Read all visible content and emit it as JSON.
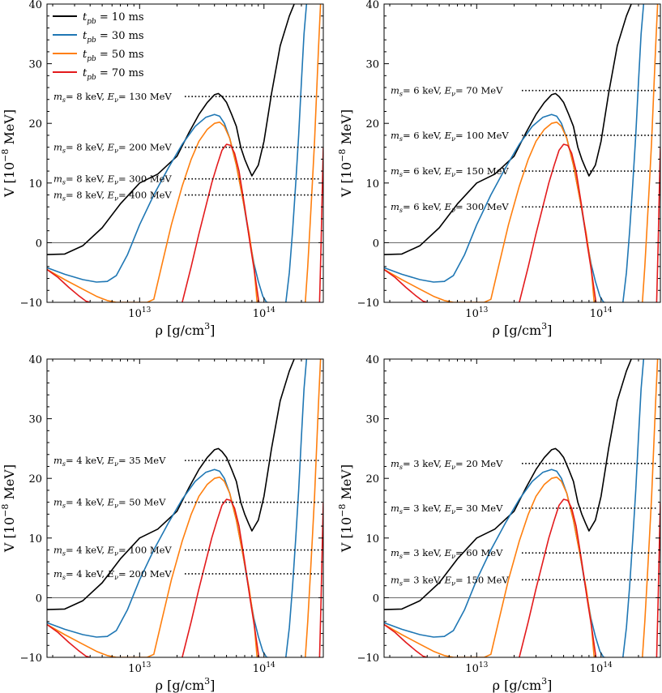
{
  "colors": {
    "t10": "#000000",
    "t30": "#1f77b4",
    "t50": "#ff7f0e",
    "t70": "#e31a1c"
  },
  "chart_data": {
    "type": "line",
    "shared": {
      "xlabel_prefix": "ρ [g/cm",
      "xlabel_sup": "3",
      "xlabel_suffix": "]",
      "ylabel_prefix": "V [10",
      "ylabel_sup": "−8",
      "ylabel_suffix": " MeV]",
      "xscale": "log",
      "xlim": [
        1800000000000.0,
        300000000000000.0
      ],
      "ylim": [
        -10,
        40
      ],
      "yticks": [
        -10,
        0,
        10,
        20,
        30,
        40
      ],
      "xticks": [
        {
          "value": 10000000000000.0,
          "base": "10",
          "exp": "13"
        },
        {
          "value": 100000000000000.0,
          "base": "10",
          "exp": "14"
        }
      ],
      "legend": {
        "location": "top-left",
        "entries": [
          {
            "key": "t10",
            "label_prefix": "t",
            "label_sub": "pb",
            "label_suffix": " = 10 ms"
          },
          {
            "key": "t30",
            "label_prefix": "t",
            "label_sub": "pb",
            "label_suffix": " = 30 ms"
          },
          {
            "key": "t50",
            "label_prefix": "t",
            "label_sub": "pb",
            "label_suffix": " = 50 ms"
          },
          {
            "key": "t70",
            "label_prefix": "t",
            "label_sub": "pb",
            "label_suffix": " = 70 ms"
          }
        ]
      },
      "series": [
        {
          "key": "t10",
          "name": "t_pb = 10 ms",
          "x": [
            1800000000000.0,
            2500000000000.0,
            3500000000000.0,
            5000000000000.0,
            7000000000000.0,
            10000000000000.0,
            14000000000000.0,
            20000000000000.0,
            25000000000000.0,
            30000000000000.0,
            35000000000000.0,
            40000000000000.0,
            43000000000000.0,
            46000000000000.0,
            50000000000000.0,
            55000000000000.0,
            60000000000000.0,
            65000000000000.0,
            70000000000000.0,
            75000000000000.0,
            80000000000000.0,
            90000000000000.0,
            100000000000000.0,
            115000000000000.0,
            135000000000000.0,
            160000000000000.0,
            175000000000000.0
          ],
          "y": [
            -2,
            -1.9,
            -0.5,
            2.5,
            6.5,
            10,
            11.5,
            14.5,
            18.5,
            21.5,
            23.5,
            24.8,
            25,
            24.5,
            23.5,
            21.5,
            19.5,
            16,
            14,
            12.5,
            11.2,
            13,
            17,
            25,
            33,
            38,
            40
          ]
        },
        {
          "key": "t30",
          "name": "t_pb = 30 ms",
          "x": [
            1800000000000.0,
            2500000000000.0,
            3500000000000.0,
            4500000000000.0,
            5500000000000.0,
            6500000000000.0,
            8000000000000.0,
            10000000000000.0,
            13000000000000.0,
            17000000000000.0,
            22000000000000.0,
            28000000000000.0,
            34000000000000.0,
            40000000000000.0,
            44000000000000.0,
            48000000000000.0,
            53000000000000.0,
            60000000000000.0,
            68000000000000.0,
            76000000000000.0,
            83000000000000.0,
            90000000000000.0,
            98000000000000.0,
            105000000000000.0,
            108000000000000.0
          ],
          "y": [
            -4.2,
            -5.3,
            -6.2,
            -6.6,
            -6.5,
            -5.5,
            -2,
            3,
            8,
            12.5,
            16.5,
            19.5,
            21,
            21.5,
            21.2,
            20,
            17.5,
            13,
            7,
            1,
            -3.5,
            -6.5,
            -9,
            -10,
            -10
          ]
        },
        {
          "key": "t30b",
          "color_key": "t30",
          "name": "t_pb = 30 ms (high-density branch)",
          "x": [
            150000000000000.0,
            160000000000000.0,
            170000000000000.0,
            180000000000000.0,
            190000000000000.0,
            200000000000000.0,
            210000000000000.0,
            220000000000000.0
          ],
          "y": [
            -10,
            -5,
            2,
            10,
            18,
            27,
            35,
            40
          ]
        },
        {
          "key": "t50",
          "name": "t_pb = 50 ms",
          "x": [
            1800000000000.0,
            2500000000000.0,
            3500000000000.0,
            4500000000000.0,
            5500000000000.0,
            6500000000000.0,
            8000000000000.0,
            10000000000000.0,
            11500000000000.0,
            13000000000000.0,
            15000000000000.0,
            18000000000000.0,
            22000000000000.0,
            26000000000000.0,
            30000000000000.0,
            35000000000000.0,
            40000000000000.0,
            44000000000000.0,
            48000000000000.0,
            53000000000000.0,
            60000000000000.0,
            68000000000000.0,
            76000000000000.0,
            83000000000000.0,
            88000000000000.0
          ],
          "y": [
            -4.5,
            -6.2,
            -7.8,
            -9,
            -9.7,
            -10,
            -10,
            -10,
            -10,
            -9.5,
            -4,
            3,
            9.5,
            14,
            17,
            19,
            20,
            20.2,
            19.5,
            17.5,
            13,
            7,
            1.5,
            -4,
            -10
          ]
        },
        {
          "key": "t50b",
          "color_key": "t50",
          "name": "t_pb = 50 ms (high-density branch)",
          "x": [
            215000000000000.0,
            225000000000000.0,
            235000000000000.0,
            245000000000000.0,
            255000000000000.0,
            265000000000000.0,
            275000000000000.0,
            285000000000000.0
          ],
          "y": [
            -10,
            -4,
            3,
            10,
            17,
            25,
            33,
            40
          ]
        },
        {
          "key": "t70",
          "name": "t_pb = 70 ms",
          "x": [
            1800000000000.0,
            2200000000000.0,
            2700000000000.0,
            3200000000000.0,
            3700000000000.0,
            4000000000000.0
          ],
          "y": [
            -4.5,
            -5.8,
            -7.5,
            -8.8,
            -9.8,
            -10
          ]
        },
        {
          "key": "t70b",
          "color_key": "t70",
          "name": "t_pb = 70 ms (main peak)",
          "x": [
            22000000000000.0,
            26000000000000.0,
            30000000000000.0,
            34000000000000.0,
            38000000000000.0,
            42000000000000.0,
            46000000000000.0,
            50000000000000.0,
            54000000000000.0,
            58000000000000.0,
            63000000000000.0,
            70000000000000.0,
            77000000000000.0,
            84000000000000.0,
            91000000000000.0
          ],
          "y": [
            -10,
            -4,
            1.5,
            6,
            10,
            13,
            15.5,
            16.5,
            16.3,
            15,
            12,
            6,
            0,
            -5,
            -10
          ]
        },
        {
          "key": "t70c",
          "color_key": "t70",
          "name": "t_pb = 70 ms (high-density branch)",
          "x": [
            280000000000000.0,
            288000000000000.0,
            295000000000000.0,
            300000000000000.0
          ],
          "y": [
            -10,
            0,
            10,
            16
          ]
        }
      ]
    },
    "panels": [
      {
        "id": "ms-8",
        "show_legend": true,
        "lines": [
          {
            "y": 24.5,
            "ms": "8 keV",
            "Ev": "130 MeV"
          },
          {
            "y": 16,
            "ms": "8 keV",
            "Ev": "200 MeV"
          },
          {
            "y": 10.7,
            "ms": "8 keV",
            "Ev": "300 MeV"
          },
          {
            "y": 8,
            "ms": "8 keV",
            "Ev": "400 MeV"
          }
        ]
      },
      {
        "id": "ms-6",
        "show_legend": false,
        "lines": [
          {
            "y": 25.5,
            "ms": "6 keV",
            "Ev": "70 MeV"
          },
          {
            "y": 18,
            "ms": "6 keV",
            "Ev": "100 MeV"
          },
          {
            "y": 12,
            "ms": "6 keV",
            "Ev": "150 MeV"
          },
          {
            "y": 6,
            "ms": "6 keV",
            "Ev": "300 MeV"
          }
        ]
      },
      {
        "id": "ms-4",
        "show_legend": false,
        "lines": [
          {
            "y": 23,
            "ms": "4 keV",
            "Ev": "35 MeV"
          },
          {
            "y": 16,
            "ms": "4 keV",
            "Ev": "50 MeV"
          },
          {
            "y": 8,
            "ms": "4 keV",
            "Ev": "100 MeV"
          },
          {
            "y": 4,
            "ms": "4 keV",
            "Ev": "200 MeV"
          }
        ]
      },
      {
        "id": "ms-3",
        "show_legend": false,
        "lines": [
          {
            "y": 22.5,
            "ms": "3 keV",
            "Ev": "20 MeV"
          },
          {
            "y": 15,
            "ms": "3 keV",
            "Ev": "30 MeV"
          },
          {
            "y": 7.5,
            "ms": "3 keV",
            "Ev": "60 MeV"
          },
          {
            "y": 3,
            "ms": "3 keV",
            "Ev": "150 MeV"
          }
        ]
      }
    ]
  }
}
